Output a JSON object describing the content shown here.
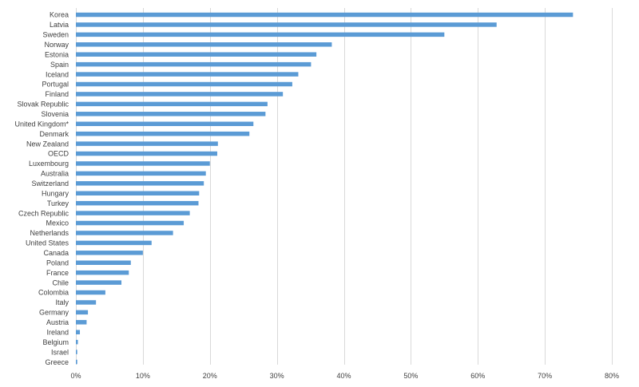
{
  "chart_data": {
    "type": "bar",
    "orientation": "horizontal",
    "title": "",
    "xlabel": "",
    "ylabel": "",
    "x_unit": "percent",
    "xlim": [
      0,
      80
    ],
    "x_ticks": [
      0,
      10,
      20,
      30,
      40,
      50,
      60,
      70,
      80
    ],
    "x_tick_labels": [
      "0%",
      "10%",
      "20%",
      "30%",
      "40%",
      "50%",
      "60%",
      "70%",
      "80%"
    ],
    "grid": "vertical",
    "legend": "none",
    "bar_color": "#5b9bd5",
    "categories": [
      "Korea",
      "Latvia",
      "Sweden",
      "Norway",
      "Estonia",
      "Spain",
      "Iceland",
      "Portugal",
      "Finland",
      "Slovak Republic",
      "Slovenia",
      "United Kingdom*",
      "Denmark",
      "New Zealand",
      "OECD",
      "Luxembourg",
      "Australia",
      "Switzerland",
      "Hungary",
      "Turkey",
      "Czech Republic",
      "Mexico",
      "Netherlands",
      "United States",
      "Canada",
      "Poland",
      "France",
      "Chile",
      "Colombia",
      "Italy",
      "Germany",
      "Austria",
      "Ireland",
      "Belgium",
      "Israel",
      "Greece"
    ],
    "values": [
      74.2,
      62.8,
      55.0,
      38.2,
      35.9,
      35.1,
      33.2,
      32.3,
      30.9,
      28.6,
      28.3,
      26.5,
      25.9,
      21.2,
      21.1,
      20.0,
      19.4,
      19.1,
      18.4,
      18.3,
      17.0,
      16.1,
      14.5,
      11.3,
      10.0,
      8.2,
      7.9,
      6.8,
      4.4,
      3.0,
      1.8,
      1.6,
      0.6,
      0.3,
      0.2,
      0.2
    ]
  }
}
